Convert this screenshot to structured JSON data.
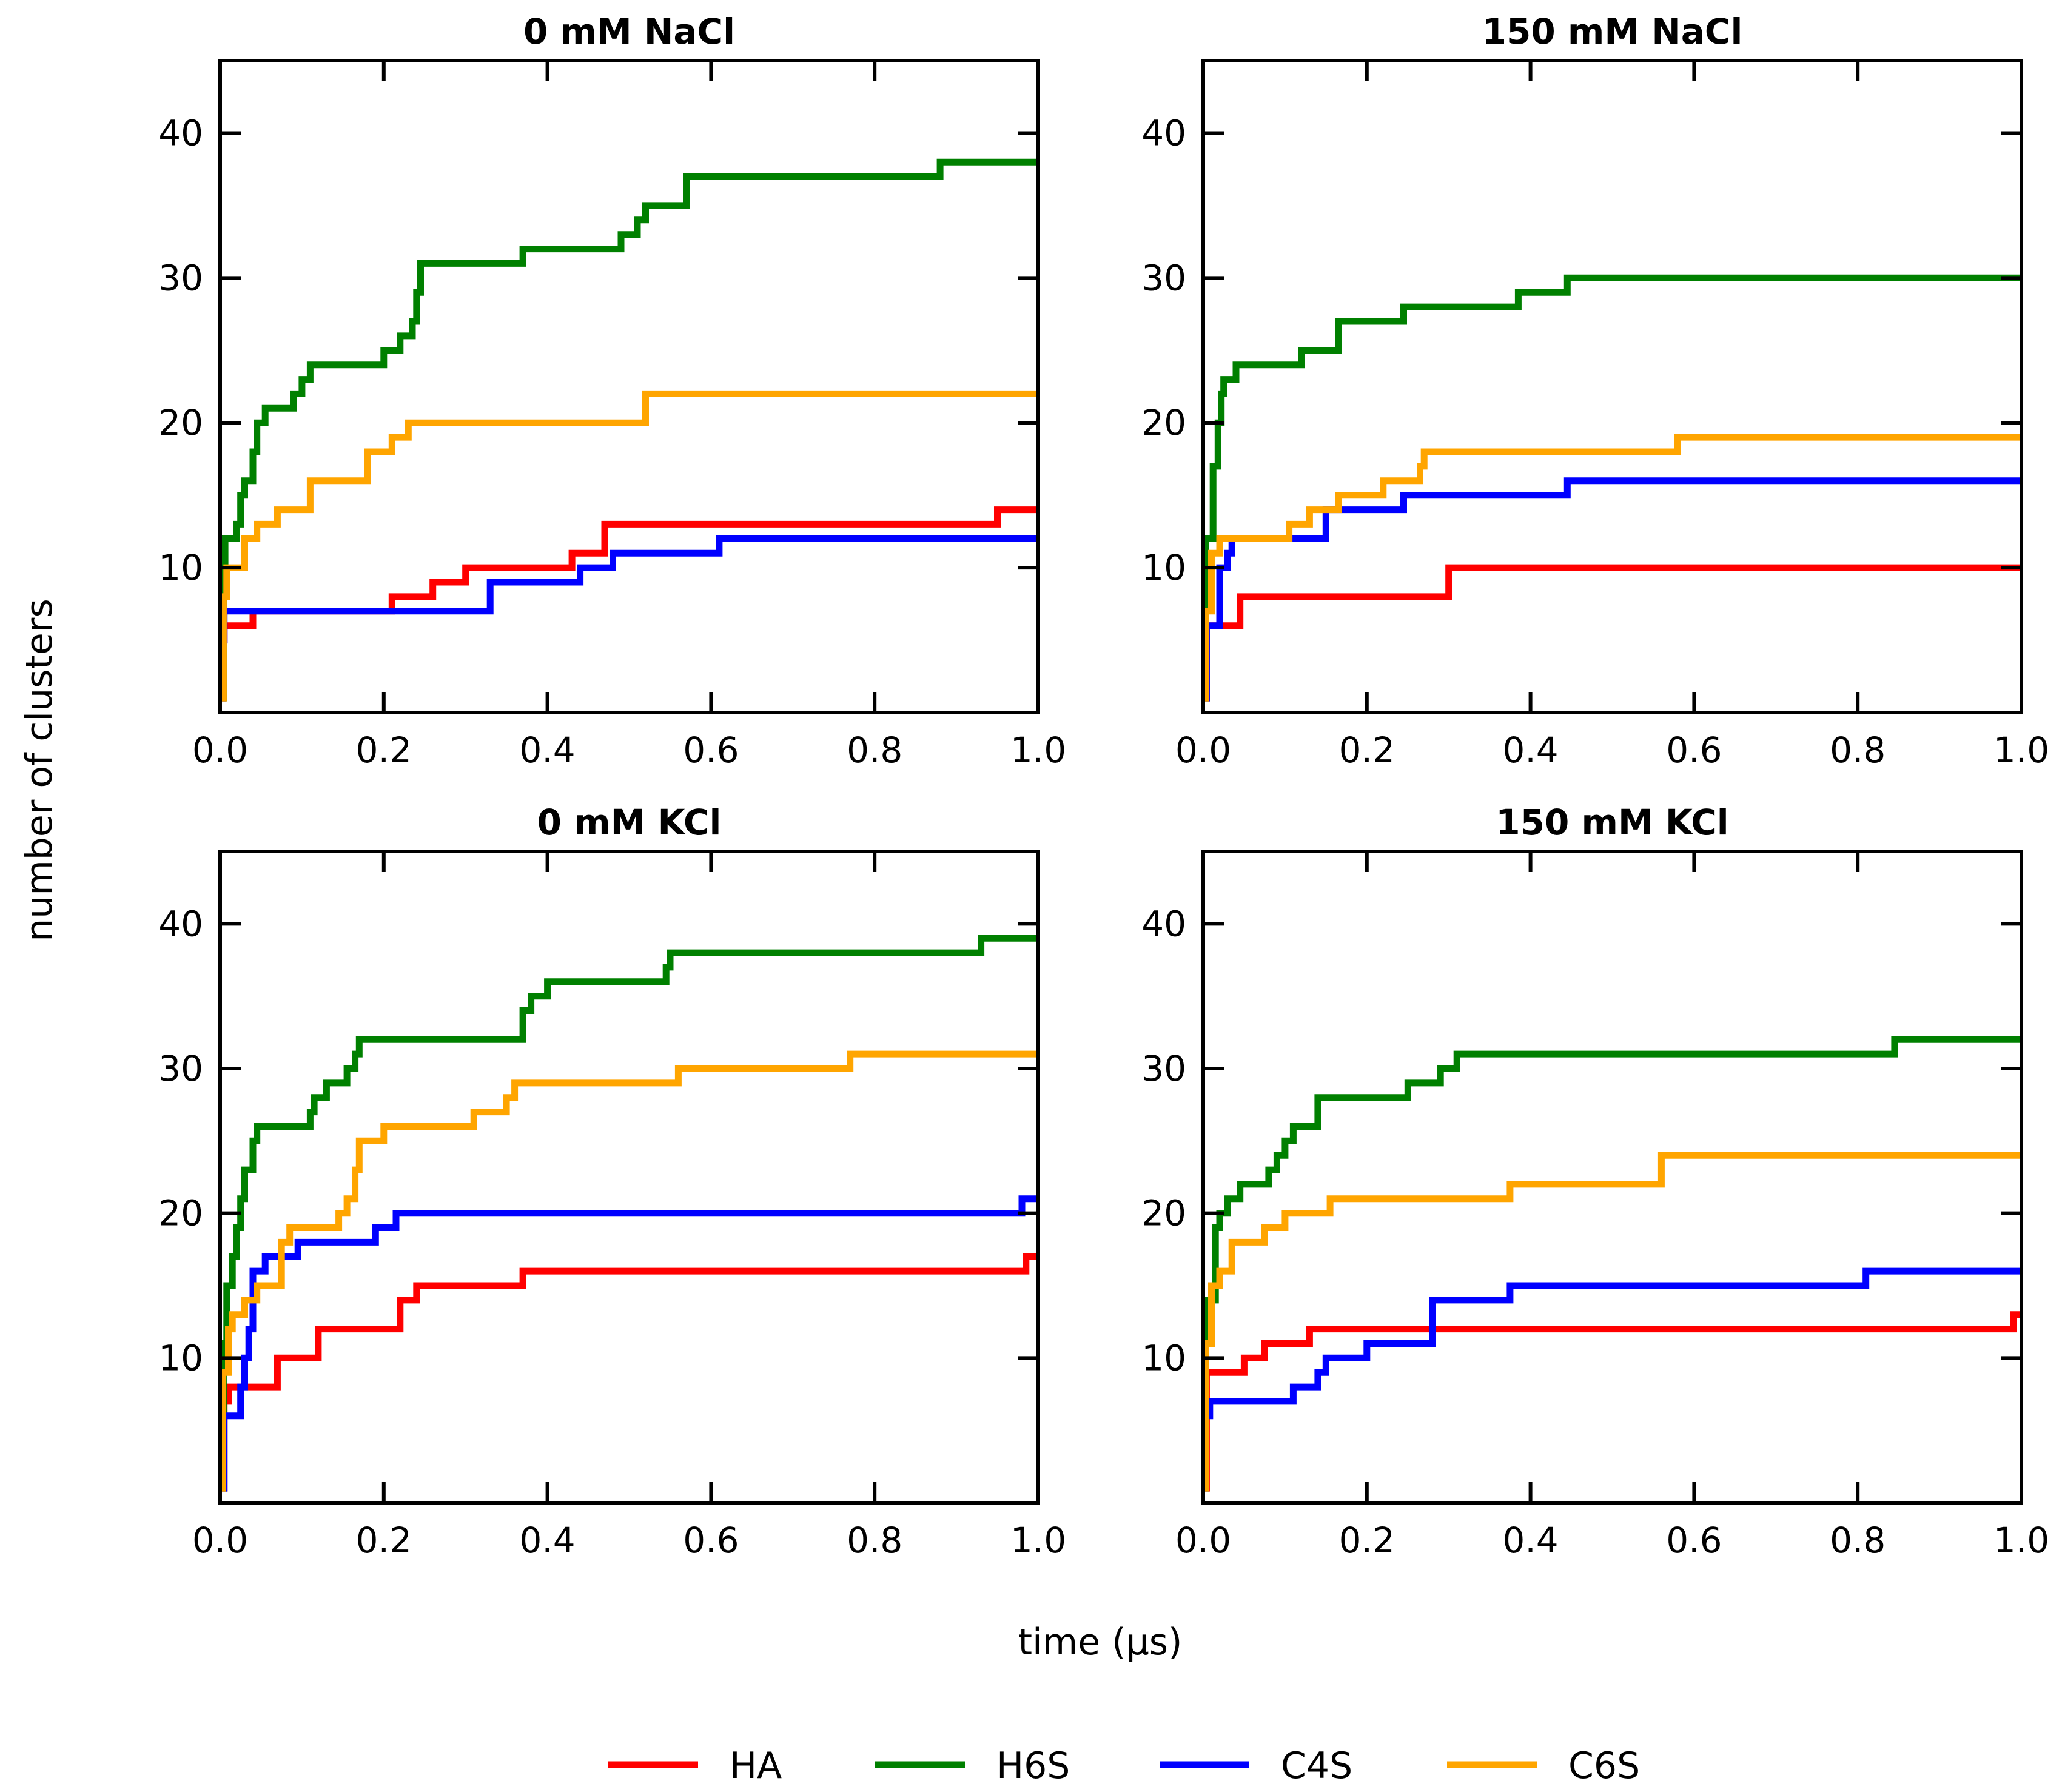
{
  "chart_data": {
    "type": "line",
    "xlabel": "time (μs)",
    "ylabel": "number of clusters",
    "xlim": [
      0.0,
      1.0
    ],
    "ylim": [
      0,
      45
    ],
    "x_ticks": [
      0.0,
      0.2,
      0.4,
      0.6,
      0.8,
      1.0
    ],
    "y_ticks": [
      10,
      20,
      30,
      40
    ],
    "legend": [
      {
        "name": "HA",
        "color": "#ff0000"
      },
      {
        "name": "H6S",
        "color": "#008000"
      },
      {
        "name": "C4S",
        "color": "#0000ff"
      },
      {
        "name": "C6S",
        "color": "#ffa500"
      }
    ],
    "legend_position": "bottom-center",
    "panels": [
      {
        "title": "0 mM NaCl",
        "series": [
          {
            "name": "HA",
            "points": [
              [
                0.0,
                1
              ],
              [
                0.003,
                5
              ],
              [
                0.005,
                6
              ],
              [
                0.04,
                7
              ],
              [
                0.21,
                8
              ],
              [
                0.26,
                9
              ],
              [
                0.3,
                10
              ],
              [
                0.43,
                11
              ],
              [
                0.47,
                13
              ],
              [
                0.95,
                14
              ],
              [
                1.0,
                14
              ]
            ]
          },
          {
            "name": "H6S",
            "points": [
              [
                0.0,
                1
              ],
              [
                0.004,
                8
              ],
              [
                0.006,
                12
              ],
              [
                0.02,
                13
              ],
              [
                0.025,
                15
              ],
              [
                0.03,
                16
              ],
              [
                0.04,
                18
              ],
              [
                0.045,
                20
              ],
              [
                0.055,
                21
              ],
              [
                0.09,
                22
              ],
              [
                0.1,
                23
              ],
              [
                0.11,
                24
              ],
              [
                0.2,
                25
              ],
              [
                0.22,
                26
              ],
              [
                0.235,
                27
              ],
              [
                0.24,
                29
              ],
              [
                0.245,
                31
              ],
              [
                0.37,
                32
              ],
              [
                0.49,
                33
              ],
              [
                0.51,
                34
              ],
              [
                0.52,
                35
              ],
              [
                0.57,
                37
              ],
              [
                0.88,
                38
              ],
              [
                1.0,
                38
              ]
            ]
          },
          {
            "name": "C4S",
            "points": [
              [
                0.0,
                1
              ],
              [
                0.003,
                5
              ],
              [
                0.005,
                7
              ],
              [
                0.33,
                9
              ],
              [
                0.44,
                10
              ],
              [
                0.48,
                11
              ],
              [
                0.61,
                12
              ],
              [
                1.0,
                12
              ]
            ]
          },
          {
            "name": "C6S",
            "points": [
              [
                0.0,
                1
              ],
              [
                0.004,
                8
              ],
              [
                0.008,
                10
              ],
              [
                0.03,
                12
              ],
              [
                0.045,
                13
              ],
              [
                0.07,
                14
              ],
              [
                0.11,
                16
              ],
              [
                0.18,
                18
              ],
              [
                0.21,
                19
              ],
              [
                0.23,
                20
              ],
              [
                0.52,
                22
              ],
              [
                1.0,
                22
              ]
            ]
          }
        ]
      },
      {
        "title": "150 mM NaCl",
        "series": [
          {
            "name": "HA",
            "points": [
              [
                0.0,
                1
              ],
              [
                0.004,
                6
              ],
              [
                0.045,
                8
              ],
              [
                0.3,
                10
              ],
              [
                1.0,
                10
              ]
            ]
          },
          {
            "name": "H6S",
            "points": [
              [
                0.0,
                1
              ],
              [
                0.003,
                12
              ],
              [
                0.012,
                17
              ],
              [
                0.018,
                20
              ],
              [
                0.022,
                22
              ],
              [
                0.025,
                23
              ],
              [
                0.04,
                24
              ],
              [
                0.12,
                25
              ],
              [
                0.165,
                27
              ],
              [
                0.245,
                28
              ],
              [
                0.385,
                29
              ],
              [
                0.445,
                30
              ],
              [
                1.0,
                30
              ]
            ]
          },
          {
            "name": "C4S",
            "points": [
              [
                0.0,
                1
              ],
              [
                0.004,
                6
              ],
              [
                0.02,
                10
              ],
              [
                0.03,
                11
              ],
              [
                0.035,
                12
              ],
              [
                0.11,
                12
              ],
              [
                0.15,
                14
              ],
              [
                0.245,
                15
              ],
              [
                0.445,
                16
              ],
              [
                1.0,
                16
              ]
            ]
          },
          {
            "name": "C6S",
            "points": [
              [
                0.0,
                1
              ],
              [
                0.003,
                7
              ],
              [
                0.01,
                11
              ],
              [
                0.02,
                12
              ],
              [
                0.105,
                13
              ],
              [
                0.13,
                14
              ],
              [
                0.165,
                15
              ],
              [
                0.22,
                16
              ],
              [
                0.265,
                17
              ],
              [
                0.27,
                18
              ],
              [
                0.58,
                19
              ],
              [
                1.0,
                19
              ]
            ]
          }
        ]
      },
      {
        "title": "0 mM KCl",
        "series": [
          {
            "name": "HA",
            "points": [
              [
                0.0,
                1
              ],
              [
                0.005,
                7
              ],
              [
                0.01,
                8
              ],
              [
                0.07,
                10
              ],
              [
                0.12,
                12
              ],
              [
                0.22,
                14
              ],
              [
                0.24,
                15
              ],
              [
                0.37,
                16
              ],
              [
                0.985,
                17
              ],
              [
                1.0,
                17
              ]
            ]
          },
          {
            "name": "H6S",
            "points": [
              [
                0.0,
                1
              ],
              [
                0.004,
                11
              ],
              [
                0.008,
                15
              ],
              [
                0.015,
                17
              ],
              [
                0.02,
                19
              ],
              [
                0.025,
                21
              ],
              [
                0.03,
                23
              ],
              [
                0.04,
                25
              ],
              [
                0.045,
                26
              ],
              [
                0.11,
                27
              ],
              [
                0.115,
                28
              ],
              [
                0.13,
                29
              ],
              [
                0.155,
                30
              ],
              [
                0.165,
                31
              ],
              [
                0.17,
                32
              ],
              [
                0.37,
                34
              ],
              [
                0.38,
                35
              ],
              [
                0.4,
                36
              ],
              [
                0.545,
                37
              ],
              [
                0.55,
                38
              ],
              [
                0.93,
                39
              ],
              [
                1.0,
                39
              ]
            ]
          },
          {
            "name": "C4S",
            "points": [
              [
                0.0,
                1
              ],
              [
                0.005,
                6
              ],
              [
                0.025,
                8
              ],
              [
                0.03,
                10
              ],
              [
                0.035,
                12
              ],
              [
                0.04,
                16
              ],
              [
                0.055,
                17
              ],
              [
                0.07,
                17
              ],
              [
                0.095,
                18
              ],
              [
                0.19,
                19
              ],
              [
                0.215,
                20
              ],
              [
                0.98,
                21
              ],
              [
                1.0,
                21
              ]
            ]
          },
          {
            "name": "C6S",
            "points": [
              [
                0.0,
                1
              ],
              [
                0.003,
                9
              ],
              [
                0.01,
                12
              ],
              [
                0.015,
                13
              ],
              [
                0.03,
                14
              ],
              [
                0.045,
                15
              ],
              [
                0.075,
                18
              ],
              [
                0.085,
                19
              ],
              [
                0.145,
                20
              ],
              [
                0.155,
                21
              ],
              [
                0.165,
                23
              ],
              [
                0.17,
                25
              ],
              [
                0.2,
                26
              ],
              [
                0.31,
                27
              ],
              [
                0.35,
                28
              ],
              [
                0.36,
                29
              ],
              [
                0.56,
                30
              ],
              [
                0.77,
                31
              ],
              [
                1.0,
                31
              ]
            ]
          }
        ]
      },
      {
        "title": "150 mM KCl",
        "series": [
          {
            "name": "HA",
            "points": [
              [
                0.0,
                1
              ],
              [
                0.004,
                9
              ],
              [
                0.05,
                10
              ],
              [
                0.075,
                11
              ],
              [
                0.13,
                12
              ],
              [
                0.99,
                13
              ],
              [
                1.0,
                13
              ]
            ]
          },
          {
            "name": "H6S",
            "points": [
              [
                0.0,
                1
              ],
              [
                0.003,
                14
              ],
              [
                0.015,
                19
              ],
              [
                0.02,
                20
              ],
              [
                0.03,
                21
              ],
              [
                0.045,
                22
              ],
              [
                0.08,
                23
              ],
              [
                0.09,
                24
              ],
              [
                0.1,
                25
              ],
              [
                0.11,
                26
              ],
              [
                0.14,
                28
              ],
              [
                0.25,
                29
              ],
              [
                0.29,
                30
              ],
              [
                0.31,
                31
              ],
              [
                0.845,
                32
              ],
              [
                1.0,
                32
              ]
            ]
          },
          {
            "name": "C4S",
            "points": [
              [
                0.0,
                1
              ],
              [
                0.003,
                6
              ],
              [
                0.008,
                7
              ],
              [
                0.11,
                8
              ],
              [
                0.14,
                9
              ],
              [
                0.15,
                10
              ],
              [
                0.2,
                11
              ],
              [
                0.28,
                14
              ],
              [
                0.375,
                15
              ],
              [
                0.81,
                16
              ],
              [
                1.0,
                16
              ]
            ]
          },
          {
            "name": "C6S",
            "points": [
              [
                0.0,
                1
              ],
              [
                0.003,
                11
              ],
              [
                0.01,
                15
              ],
              [
                0.02,
                16
              ],
              [
                0.035,
                18
              ],
              [
                0.075,
                19
              ],
              [
                0.1,
                20
              ],
              [
                0.155,
                21
              ],
              [
                0.375,
                22
              ],
              [
                0.56,
                24
              ],
              [
                1.0,
                24
              ]
            ]
          }
        ]
      }
    ]
  }
}
